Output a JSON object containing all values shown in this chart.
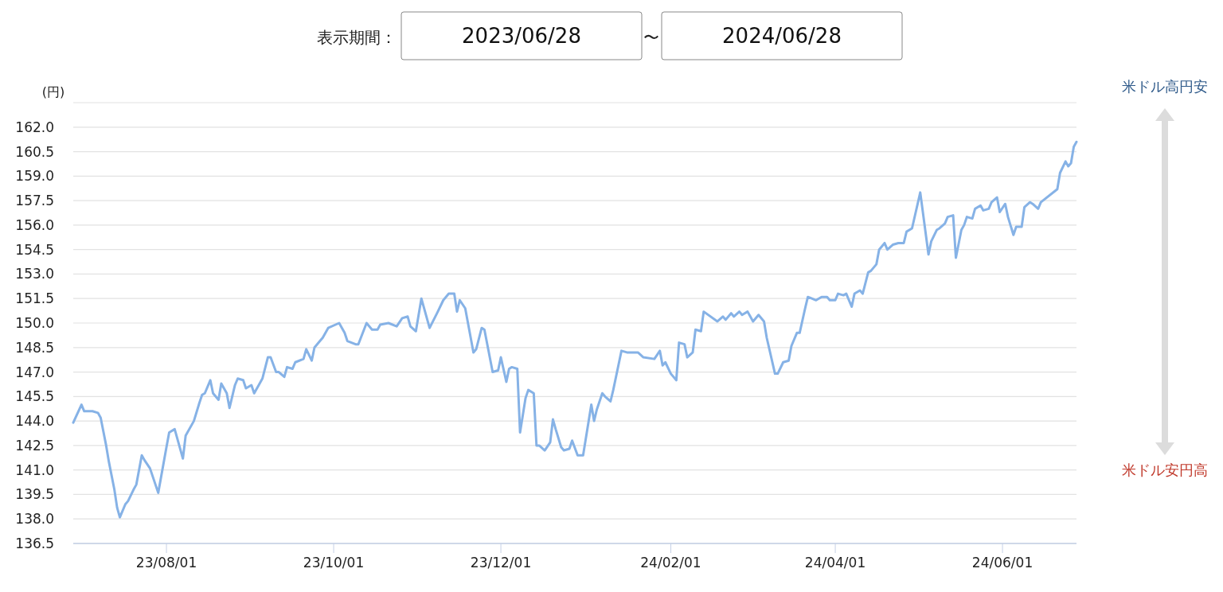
{
  "chart_data": {
    "type": "line",
    "annotations": [
      "表示期間：",
      "2023/06/28",
      "〜",
      "2024/06/28",
      "米ドル高円安",
      "米ドル安円高"
    ],
    "ylabel": "(円)",
    "x": [
      "2023-06-28",
      "2023-07-01",
      "2023-07-02",
      "2023-07-05",
      "2023-07-07",
      "2023-07-08",
      "2023-07-10",
      "2023-07-11",
      "2023-07-13",
      "2023-07-14",
      "2023-07-15",
      "2023-07-17",
      "2023-07-18",
      "2023-07-20",
      "2023-07-21",
      "2023-07-23",
      "2023-07-24",
      "2023-07-26",
      "2023-07-29",
      "2023-08-01",
      "2023-08-02",
      "2023-08-04",
      "2023-08-05",
      "2023-08-07",
      "2023-08-08",
      "2023-08-11",
      "2023-08-13",
      "2023-08-14",
      "2023-08-15",
      "2023-08-17",
      "2023-08-18",
      "2023-08-20",
      "2023-08-21",
      "2023-08-23",
      "2023-08-24",
      "2023-08-26",
      "2023-08-27",
      "2023-08-29",
      "2023-08-30",
      "2023-09-01",
      "2023-09-02",
      "2023-09-04",
      "2023-09-05",
      "2023-09-07",
      "2023-09-08",
      "2023-09-10",
      "2023-09-11",
      "2023-09-13",
      "2023-09-14",
      "2023-09-16",
      "2023-09-17",
      "2023-09-20",
      "2023-09-21",
      "2023-09-23",
      "2023-09-24",
      "2023-09-26",
      "2023-09-27",
      "2023-09-29",
      "2023-10-03",
      "2023-10-05",
      "2023-10-06",
      "2023-10-09",
      "2023-10-10",
      "2023-10-13",
      "2023-10-15",
      "2023-10-17",
      "2023-10-18",
      "2023-10-21",
      "2023-10-24",
      "2023-10-26",
      "2023-10-28",
      "2023-10-29",
      "2023-10-31",
      "2023-11-02",
      "2023-11-05",
      "2023-11-08",
      "2023-11-10",
      "2023-11-12",
      "2023-11-14",
      "2023-11-15",
      "2023-11-16",
      "2023-11-18",
      "2023-11-19",
      "2023-11-21",
      "2023-11-22",
      "2023-11-24",
      "2023-11-25",
      "2023-11-28",
      "2023-11-30",
      "2023-12-01",
      "2023-12-03",
      "2023-12-04",
      "2023-12-05",
      "2023-12-07",
      "2023-12-08",
      "2023-12-10",
      "2023-12-11",
      "2023-12-13",
      "2023-12-14",
      "2023-12-15",
      "2023-12-17",
      "2023-12-19",
      "2023-12-20",
      "2023-12-21",
      "2023-12-23",
      "2023-12-24",
      "2023-12-26",
      "2023-12-27",
      "2023-12-29",
      "2023-12-31",
      "2024-01-03",
      "2024-01-04",
      "2024-01-05",
      "2024-01-07",
      "2024-01-08",
      "2024-01-10",
      "2024-01-11",
      "2024-01-13",
      "2024-01-14",
      "2024-01-16",
      "2024-01-17",
      "2024-01-20",
      "2024-01-22",
      "2024-01-26",
      "2024-01-28",
      "2024-01-29",
      "2024-01-30",
      "2024-02-01",
      "2024-02-03",
      "2024-02-04",
      "2024-02-06",
      "2024-02-07",
      "2024-02-09",
      "2024-02-10",
      "2024-02-12",
      "2024-02-13",
      "2024-02-18",
      "2024-02-20",
      "2024-02-21",
      "2024-02-23",
      "2024-02-24",
      "2024-02-26",
      "2024-02-27",
      "2024-02-29",
      "2024-03-01",
      "2024-03-02",
      "2024-03-04",
      "2024-03-06",
      "2024-03-07",
      "2024-03-10",
      "2024-03-11",
      "2024-03-13",
      "2024-03-15",
      "2024-03-16",
      "2024-03-18",
      "2024-03-19",
      "2024-03-21",
      "2024-03-22",
      "2024-03-25",
      "2024-03-27",
      "2024-03-29",
      "2024-03-30",
      "2024-04-01",
      "2024-04-02",
      "2024-04-04",
      "2024-04-05",
      "2024-04-07",
      "2024-04-08",
      "2024-04-10",
      "2024-04-11",
      "2024-04-13",
      "2024-04-14",
      "2024-04-16",
      "2024-04-17",
      "2024-04-19",
      "2024-04-20",
      "2024-04-22",
      "2024-04-24",
      "2024-04-26",
      "2024-04-27",
      "2024-04-29",
      "2024-05-02",
      "2024-05-05",
      "2024-05-06",
      "2024-05-08",
      "2024-05-09",
      "2024-05-11",
      "2024-05-12",
      "2024-05-14",
      "2024-05-15",
      "2024-05-17",
      "2024-05-18",
      "2024-05-19",
      "2024-05-21",
      "2024-05-22",
      "2024-05-24",
      "2024-05-25",
      "2024-05-27",
      "2024-05-28",
      "2024-05-30",
      "2024-05-31",
      "2024-06-02",
      "2024-06-03",
      "2024-06-05",
      "2024-06-06",
      "2024-06-08",
      "2024-06-09",
      "2024-06-11",
      "2024-06-12",
      "2024-06-14",
      "2024-06-15",
      "2024-06-21",
      "2024-06-22",
      "2024-06-24",
      "2024-06-25",
      "2024-06-26",
      "2024-06-27",
      "2024-06-28"
    ],
    "values": [
      143.9,
      145.0,
      144.6,
      144.6,
      144.5,
      144.2,
      142.5,
      141.5,
      139.8,
      138.7,
      138.1,
      138.9,
      139.1,
      139.8,
      140.1,
      141.9,
      141.6,
      141.1,
      139.6,
      142.4,
      143.3,
      143.5,
      142.9,
      141.7,
      143.1,
      144.0,
      145.1,
      145.6,
      145.7,
      146.5,
      145.7,
      145.3,
      146.3,
      145.7,
      144.8,
      146.2,
      146.6,
      146.5,
      146.0,
      146.2,
      145.7,
      146.3,
      146.6,
      147.9,
      147.9,
      147.0,
      147.0,
      146.7,
      147.3,
      147.2,
      147.6,
      147.8,
      148.4,
      147.7,
      148.5,
      148.9,
      149.1,
      149.7,
      150.0,
      149.4,
      148.9,
      148.7,
      148.7,
      150.0,
      149.6,
      149.6,
      149.9,
      150.0,
      149.8,
      150.3,
      150.4,
      149.8,
      149.5,
      151.5,
      149.7,
      150.7,
      151.4,
      151.8,
      151.8,
      150.7,
      151.4,
      150.9,
      150.0,
      148.2,
      148.4,
      149.7,
      149.6,
      147.0,
      147.1,
      147.9,
      146.4,
      147.2,
      147.3,
      147.2,
      143.3,
      145.4,
      145.9,
      145.7,
      142.5,
      142.5,
      142.2,
      142.7,
      144.1,
      143.5,
      142.4,
      142.2,
      142.3,
      142.8,
      141.9,
      141.9,
      145.0,
      144.0,
      144.7,
      145.7,
      145.5,
      145.2,
      145.9,
      147.5,
      148.3,
      148.2,
      148.2,
      148.2,
      147.9,
      147.8,
      148.3,
      147.4,
      147.6,
      146.9,
      146.5,
      148.8,
      148.7,
      147.9,
      148.2,
      149.6,
      149.5,
      150.7,
      150.1,
      150.4,
      150.2,
      150.6,
      150.4,
      150.7,
      150.5,
      150.7,
      150.4,
      150.1,
      150.5,
      150.1,
      149.1,
      146.9,
      146.9,
      147.6,
      147.7,
      148.6,
      149.4,
      149.4,
      150.9,
      151.6,
      151.4,
      151.6,
      151.6,
      151.4,
      151.4,
      151.8,
      151.7,
      151.8,
      151.0,
      151.8,
      152.0,
      151.8,
      153.1,
      153.2,
      153.6,
      154.5,
      154.9,
      154.5,
      154.8,
      154.9,
      154.9,
      155.6,
      155.8,
      158.0,
      154.2,
      155.0,
      155.7,
      155.8,
      156.1,
      156.5,
      156.6,
      154.0,
      155.7,
      156.0,
      156.5,
      156.4,
      157.0,
      157.2,
      156.9,
      157.0,
      157.4,
      157.7,
      156.8,
      157.3,
      156.5,
      155.4,
      155.9,
      155.9,
      157.1,
      157.4,
      157.3,
      157.0,
      157.4,
      158.2,
      159.2,
      159.9,
      159.6,
      159.8,
      160.8,
      161.1
    ],
    "color": "#86b2e6",
    "xlim": [
      "2023-06-28",
      "2024-06-28"
    ],
    "xticks": [
      {
        "value": "2023-08-01",
        "label": "23/08/01"
      },
      {
        "value": "2023-10-01",
        "label": "23/10/01"
      },
      {
        "value": "2023-12-01",
        "label": "23/12/01"
      },
      {
        "value": "2024-02-01",
        "label": "24/02/01"
      },
      {
        "value": "2024-04-01",
        "label": "24/04/01"
      },
      {
        "value": "2024-06-01",
        "label": "24/06/01"
      }
    ],
    "ylim": [
      136.5,
      163.5
    ],
    "yticks": [
      {
        "value": 136.5,
        "label": "136.5"
      },
      {
        "value": 138,
        "label": "138.0"
      },
      {
        "value": 139.5,
        "label": "139.5"
      },
      {
        "value": 141,
        "label": "141.0"
      },
      {
        "value": 142.5,
        "label": "142.5"
      },
      {
        "value": 144,
        "label": "144.0"
      },
      {
        "value": 145.5,
        "label": "145.5"
      },
      {
        "value": 147,
        "label": "147.0"
      },
      {
        "value": 148.5,
        "label": "148.5"
      },
      {
        "value": 150,
        "label": "150.0"
      },
      {
        "value": 151.5,
        "label": "151.5"
      },
      {
        "value": 153,
        "label": "153.0"
      },
      {
        "value": 154.5,
        "label": "154.5"
      },
      {
        "value": 156,
        "label": "156.0"
      },
      {
        "value": 157.5,
        "label": "157.5"
      },
      {
        "value": 159,
        "label": "159.0"
      },
      {
        "value": 160.5,
        "label": "160.5"
      },
      {
        "value": 162,
        "label": "162.0"
      },
      {
        "value": 163.5,
        "label": null
      }
    ],
    "grid": "y",
    "marker": "none",
    "line_style": "solid"
  }
}
